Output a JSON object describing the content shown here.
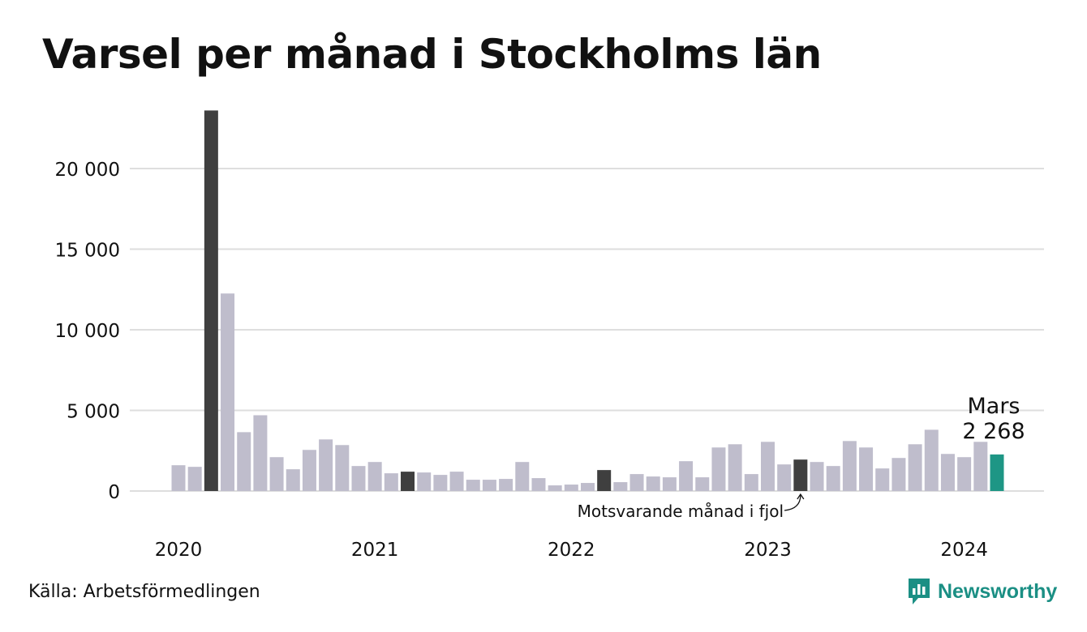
{
  "title": "Varsel per månad i Stockholms län",
  "source": "Källa: Arbetsförmedlingen",
  "brand": "Newsworthy",
  "colors": {
    "bar": "#bfbdcc",
    "same_month_highlight": "#3f3f3f",
    "latest": "#1e9685",
    "grid": "#dedede",
    "brand": "#1b8f84"
  },
  "chart_data": {
    "type": "bar",
    "title": "Varsel per månad i Stockholms län",
    "xlabel": "",
    "ylabel": "",
    "ylim": [
      0,
      24000
    ],
    "yticks": [
      0,
      5000,
      10000,
      15000,
      20000
    ],
    "ytick_labels": [
      "0",
      "5 000",
      "10 000",
      "15 000",
      "20 000"
    ],
    "x_tick_labels": [
      {
        "label": "2020",
        "month_index": 0
      },
      {
        "label": "2021",
        "month_index": 12
      },
      {
        "label": "2022",
        "month_index": 24
      },
      {
        "label": "2023",
        "month_index": 36
      },
      {
        "label": "2024",
        "month_index": 48
      }
    ],
    "grid": true,
    "categories": [
      "2020-01",
      "2020-02",
      "2020-03",
      "2020-04",
      "2020-05",
      "2020-06",
      "2020-07",
      "2020-08",
      "2020-09",
      "2020-10",
      "2020-11",
      "2020-12",
      "2021-01",
      "2021-02",
      "2021-03",
      "2021-04",
      "2021-05",
      "2021-06",
      "2021-07",
      "2021-08",
      "2021-09",
      "2021-10",
      "2021-11",
      "2021-12",
      "2022-01",
      "2022-02",
      "2022-03",
      "2022-04",
      "2022-05",
      "2022-06",
      "2022-07",
      "2022-08",
      "2022-09",
      "2022-10",
      "2022-11",
      "2022-12",
      "2023-01",
      "2023-02",
      "2023-03",
      "2023-04",
      "2023-05",
      "2023-06",
      "2023-07",
      "2023-08",
      "2023-09",
      "2023-10",
      "2023-11",
      "2023-12",
      "2024-01",
      "2024-02",
      "2024-03"
    ],
    "values": [
      1600,
      1500,
      23600,
      12250,
      3650,
      4700,
      2100,
      1350,
      2550,
      3200,
      2850,
      1550,
      1800,
      1100,
      1200,
      1150,
      1000,
      1200,
      700,
      700,
      750,
      1800,
      800,
      350,
      400,
      500,
      1300,
      550,
      1050,
      900,
      850,
      1850,
      850,
      2700,
      2900,
      1050,
      3050,
      1650,
      1950,
      1800,
      1550,
      3100,
      2700,
      1400,
      2050,
      2900,
      3800,
      2300,
      2100,
      3050,
      2268
    ],
    "highlight_indices": [
      2,
      14,
      26,
      38
    ],
    "latest_index": 50,
    "annotations": {
      "latest_label_line1": "Mars",
      "latest_label_line2": "2 268",
      "same_month_note": "Motsvarande månad i fjol"
    }
  }
}
